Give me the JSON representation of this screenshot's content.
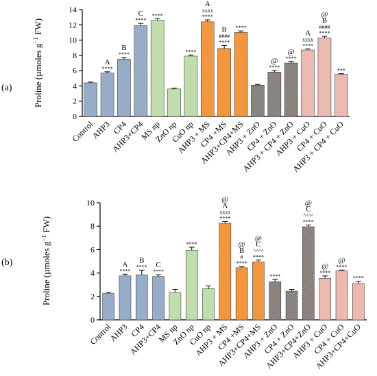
{
  "figure": {
    "background": "#ffffff"
  },
  "chart_data": [
    {
      "panel_label": "(a)",
      "type": "bar",
      "ylabel": "Proline (µmoles g",
      "ylabel_sup": "−1",
      "ylabel_tail": "FW)",
      "ylim": [
        0,
        14
      ],
      "yticks": [
        0,
        2,
        4,
        6,
        8,
        10,
        12,
        14
      ],
      "ytick_labels": [
        "0",
        "2",
        "4",
        "6",
        "8",
        "10",
        "12",
        "14"
      ],
      "grid": false,
      "categories": [
        "Control",
        "AHP3",
        "CP4",
        "AHP3+CP4",
        "MS np",
        "ZnO np",
        "CuO np",
        "AHP3 + MS",
        "CP4 +MS",
        "AHP3+CP4+MS",
        "AHP3 + ZnO",
        "CP4 + ZnO",
        "AHP3 + CP4 + ZnO",
        "AHP3 + CuO",
        "CP4 + CuO",
        "AHP3 + CP4 + CuO"
      ],
      "values": [
        4.4,
        5.7,
        7.5,
        11.9,
        12.6,
        3.6,
        7.9,
        12.4,
        8.9,
        11.0,
        4.1,
        5.8,
        7.0,
        8.7,
        10.3,
        5.5
      ],
      "errors": [
        0.1,
        0.15,
        0.2,
        0.3,
        0.2,
        0.1,
        0.15,
        0.25,
        0.4,
        0.2,
        0.1,
        0.2,
        0.2,
        0.15,
        0.2,
        0.1
      ],
      "groups": [
        "blue",
        "blue",
        "blue",
        "blue",
        "green",
        "green",
        "green",
        "orange",
        "orange",
        "orange",
        "gray",
        "gray",
        "gray",
        "pink",
        "pink",
        "pink"
      ],
      "annotations": [
        [],
        [
          "A",
          "****"
        ],
        [
          "B",
          "****"
        ],
        [
          "C",
          "****"
        ],
        [
          "****"
        ],
        [],
        [
          "****"
        ],
        [
          "A",
          "xxxx",
          "****"
        ],
        [
          "B",
          "####",
          "****"
        ],
        [
          "****"
        ],
        [],
        [
          "@",
          "****"
        ],
        [
          "@",
          "****"
        ],
        [
          "A",
          "xxxx",
          "****"
        ],
        [
          "@",
          "B",
          "####",
          "****"
        ],
        [
          "***"
        ]
      ]
    },
    {
      "panel_label": "(b)",
      "type": "bar",
      "ylabel": "Proline (µmoles g",
      "ylabel_sup": "−1",
      "ylabel_tail": "FW)",
      "ylim": [
        0,
        10
      ],
      "yticks": [
        0,
        2,
        4,
        6,
        8,
        10
      ],
      "ytick_labels": [
        "0",
        "2",
        "4",
        "6",
        "8",
        "10"
      ],
      "grid": false,
      "categories": [
        "Control",
        "AHP3",
        "CP4",
        "AHP3+CP4",
        "MS np",
        "ZnO np",
        "CuO np",
        "AHP3 + MS",
        "CP4 +MS",
        "AHP3+CP4+MS",
        "AHP3 + ZnO",
        "CP4 + ZnO",
        "AHP3+CP4+ZnO",
        "AHP3 + CuO",
        "CP4 + CuO",
        "AHP3+CP4+CuO"
      ],
      "values": [
        2.25,
        3.75,
        3.85,
        3.7,
        2.35,
        5.95,
        2.65,
        8.25,
        4.45,
        4.95,
        3.25,
        2.45,
        7.95,
        3.55,
        4.2,
        3.1
      ],
      "errors": [
        0.1,
        0.15,
        0.4,
        0.15,
        0.25,
        0.25,
        0.25,
        0.15,
        0.1,
        0.15,
        0.2,
        0.15,
        0.15,
        0.2,
        0.05,
        0.2
      ],
      "groups": [
        "blue",
        "blue",
        "blue",
        "blue",
        "green",
        "green",
        "green",
        "orange",
        "orange",
        "orange",
        "gray",
        "gray",
        "gray",
        "pink",
        "pink",
        "pink"
      ],
      "annotations": [
        [],
        [
          "A",
          "****"
        ],
        [
          "B",
          "****"
        ],
        [
          "C",
          "****"
        ],
        [],
        [
          "****"
        ],
        [],
        [
          "@",
          "A",
          "xxxx",
          "****"
        ],
        [
          "@",
          "B",
          "#",
          "****"
        ],
        [
          "@",
          "C",
          "^^^^",
          "****"
        ],
        [
          "****"
        ],
        [],
        [
          "@",
          "C",
          "^^^^",
          "****"
        ],
        [
          "@",
          "****"
        ],
        [
          "@",
          "****"
        ],
        [
          "****"
        ]
      ]
    }
  ],
  "colors": {
    "blue": "#8ba3c2",
    "green": "#b9d9a2",
    "orange": "#f08a28",
    "gray": "#7d7470",
    "pink": "#e8b2a8",
    "axis": "#000000"
  }
}
